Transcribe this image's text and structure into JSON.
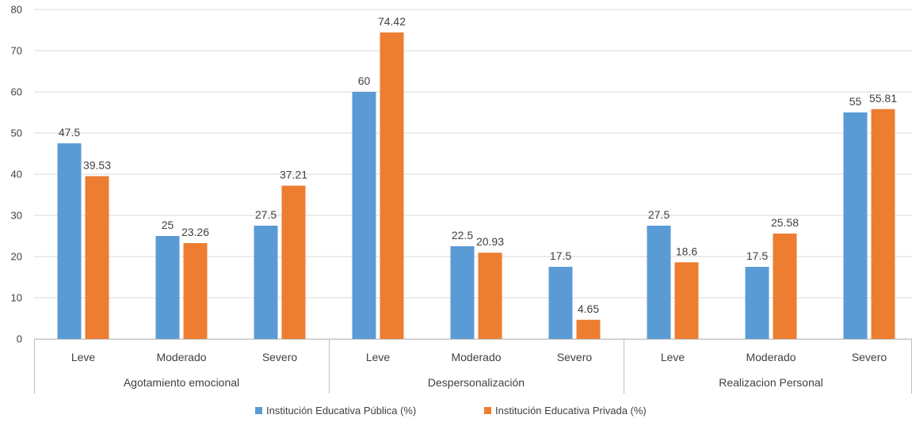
{
  "chart_data": {
    "type": "bar",
    "groups": [
      {
        "label": "Agotamiento emocional",
        "categories": [
          "Leve",
          "Moderado",
          "Severo"
        ]
      },
      {
        "label": "Despersonalización",
        "categories": [
          "Leve",
          "Moderado",
          "Severo"
        ]
      },
      {
        "label": "Realizacion Personal",
        "categories": [
          "Leve",
          "Moderado",
          "Severo"
        ]
      }
    ],
    "series": [
      {
        "name": "Institución Educativa Pública (%)",
        "color": "#5B9BD5",
        "values": [
          47.5,
          25,
          27.5,
          60,
          22.5,
          17.5,
          27.5,
          17.5,
          55
        ],
        "labels": [
          "47.5",
          "25",
          "27.5",
          "60",
          "22.5",
          "17.5",
          "27.5",
          "17.5",
          "55"
        ]
      },
      {
        "name": "Institución Educativa Privada (%)",
        "color": "#ED7D31",
        "values": [
          39.53,
          23.26,
          37.21,
          74.42,
          20.93,
          4.65,
          18.6,
          25.58,
          55.81
        ],
        "labels": [
          "39.53",
          "23.26",
          "37.21",
          "74.42",
          "20.93",
          "4.65",
          "18.6",
          "25.58",
          "55.81"
        ]
      }
    ],
    "yticks": [
      "0",
      "10",
      "20",
      "30",
      "40",
      "50",
      "60",
      "70",
      "80"
    ],
    "ylim": [
      0,
      80
    ],
    "grid": true,
    "legend_position": "bottom"
  }
}
